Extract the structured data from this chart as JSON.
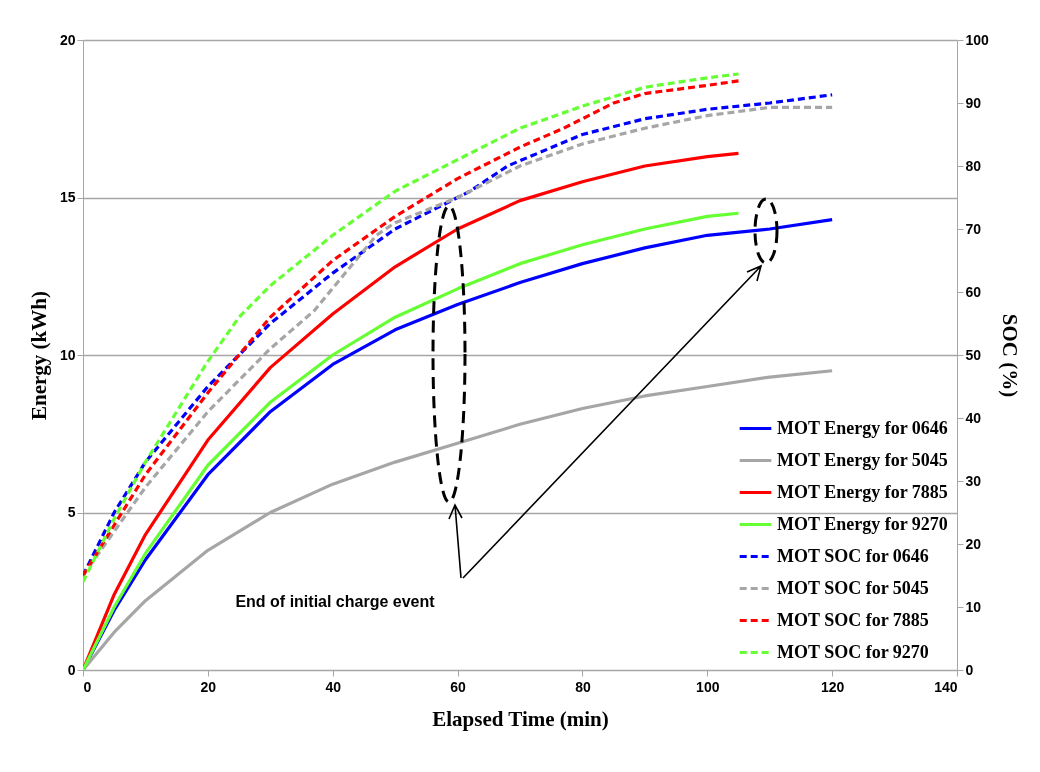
{
  "chart_data": {
    "type": "line",
    "xlabel": "Elapsed Time (min)",
    "ylabel": "Energy (kWh)",
    "y2label": "SOC (%)",
    "xlim": [
      0,
      140
    ],
    "xticks": [
      0,
      20,
      40,
      60,
      80,
      100,
      120,
      140
    ],
    "ylim": [
      0,
      20
    ],
    "yticks": [
      0,
      5,
      10,
      15,
      20
    ],
    "y2lim": [
      0,
      100
    ],
    "y2ticks": [
      0,
      10,
      20,
      30,
      40,
      50,
      60,
      70,
      80,
      90,
      100
    ],
    "grid": "y",
    "legend": "bottom right",
    "marker": "none",
    "annotations": [
      "End of initial charge event"
    ],
    "series": [
      {
        "name": "MOT Energy for 0646",
        "color": "#0000ff",
        "line_style": "solid",
        "x": [
          0,
          5,
          10,
          20,
          30,
          40,
          50,
          60,
          70,
          80,
          90,
          100,
          110,
          120
        ],
        "values": [
          0,
          1.9,
          3.5,
          6.2,
          8.2,
          9.7,
          10.8,
          11.6,
          12.3,
          12.9,
          13.4,
          13.8,
          14.0,
          14.3
        ]
      },
      {
        "name": "MOT Energy for 5045",
        "color": "#a6a6a6",
        "line_style": "solid",
        "x": [
          0,
          5,
          10,
          20,
          30,
          40,
          50,
          60,
          70,
          80,
          90,
          100,
          110,
          120
        ],
        "values": [
          0,
          1.2,
          2.2,
          3.8,
          5.0,
          5.9,
          6.6,
          7.2,
          7.8,
          8.3,
          8.7,
          9.0,
          9.3,
          9.5
        ]
      },
      {
        "name": "MOT Energy for 7885",
        "color": "#ff0000",
        "line_style": "solid",
        "x": [
          0,
          5,
          10,
          20,
          30,
          40,
          50,
          60,
          70,
          80,
          90,
          100,
          105
        ],
        "values": [
          0,
          2.4,
          4.3,
          7.3,
          9.6,
          11.3,
          12.8,
          14.0,
          14.9,
          15.5,
          16.0,
          16.3,
          16.4
        ]
      },
      {
        "name": "MOT Energy for 9270",
        "color": "#66ff33",
        "line_style": "solid",
        "x": [
          0,
          5,
          10,
          20,
          30,
          40,
          50,
          60,
          70,
          80,
          90,
          100,
          105
        ],
        "values": [
          0,
          2.0,
          3.7,
          6.5,
          8.5,
          10.0,
          11.2,
          12.1,
          12.9,
          13.5,
          14.0,
          14.4,
          14.5
        ]
      },
      {
        "name": "MOT SOC for 0646",
        "color": "#0000ff",
        "line_style": "dashed",
        "axis": "y2",
        "x": [
          0,
          5,
          10,
          20,
          30,
          40,
          50,
          60,
          62,
          68,
          80,
          90,
          100,
          110,
          120
        ],
        "values": [
          15,
          25,
          33,
          45,
          55,
          63,
          70,
          75,
          76,
          80,
          85,
          87.5,
          89,
          90,
          91.3
        ]
      },
      {
        "name": "MOT SOC for 5045",
        "color": "#a6a6a6",
        "line_style": "dashed",
        "axis": "y2",
        "x": [
          0,
          10,
          20,
          30,
          37,
          42,
          47,
          50,
          60,
          70,
          80,
          90,
          100,
          110,
          120
        ],
        "values": [
          15,
          29,
          41,
          51,
          57,
          63,
          69,
          71,
          75,
          80,
          83.5,
          86,
          88,
          89.3,
          89.3
        ]
      },
      {
        "name": "MOT SOC for 7885",
        "color": "#ff0000",
        "line_style": "dashed",
        "axis": "y2",
        "x": [
          0,
          5,
          10,
          20,
          30,
          40,
          50,
          60,
          70,
          77,
          85,
          90,
          100,
          105
        ],
        "values": [
          15,
          23,
          31,
          44,
          56,
          65,
          72,
          78,
          83,
          86,
          90,
          91.5,
          92.8,
          93.5
        ]
      },
      {
        "name": "MOT SOC for 9270",
        "color": "#66ff33",
        "line_style": "dashed",
        "axis": "y2",
        "x": [
          0,
          5,
          10,
          15,
          20,
          25,
          30,
          40,
          50,
          60,
          70,
          80,
          90,
          100,
          105
        ],
        "values": [
          14,
          24,
          33,
          41,
          49,
          56,
          61,
          69,
          76,
          81,
          86,
          89.5,
          92.5,
          94,
          94.6
        ]
      }
    ]
  }
}
